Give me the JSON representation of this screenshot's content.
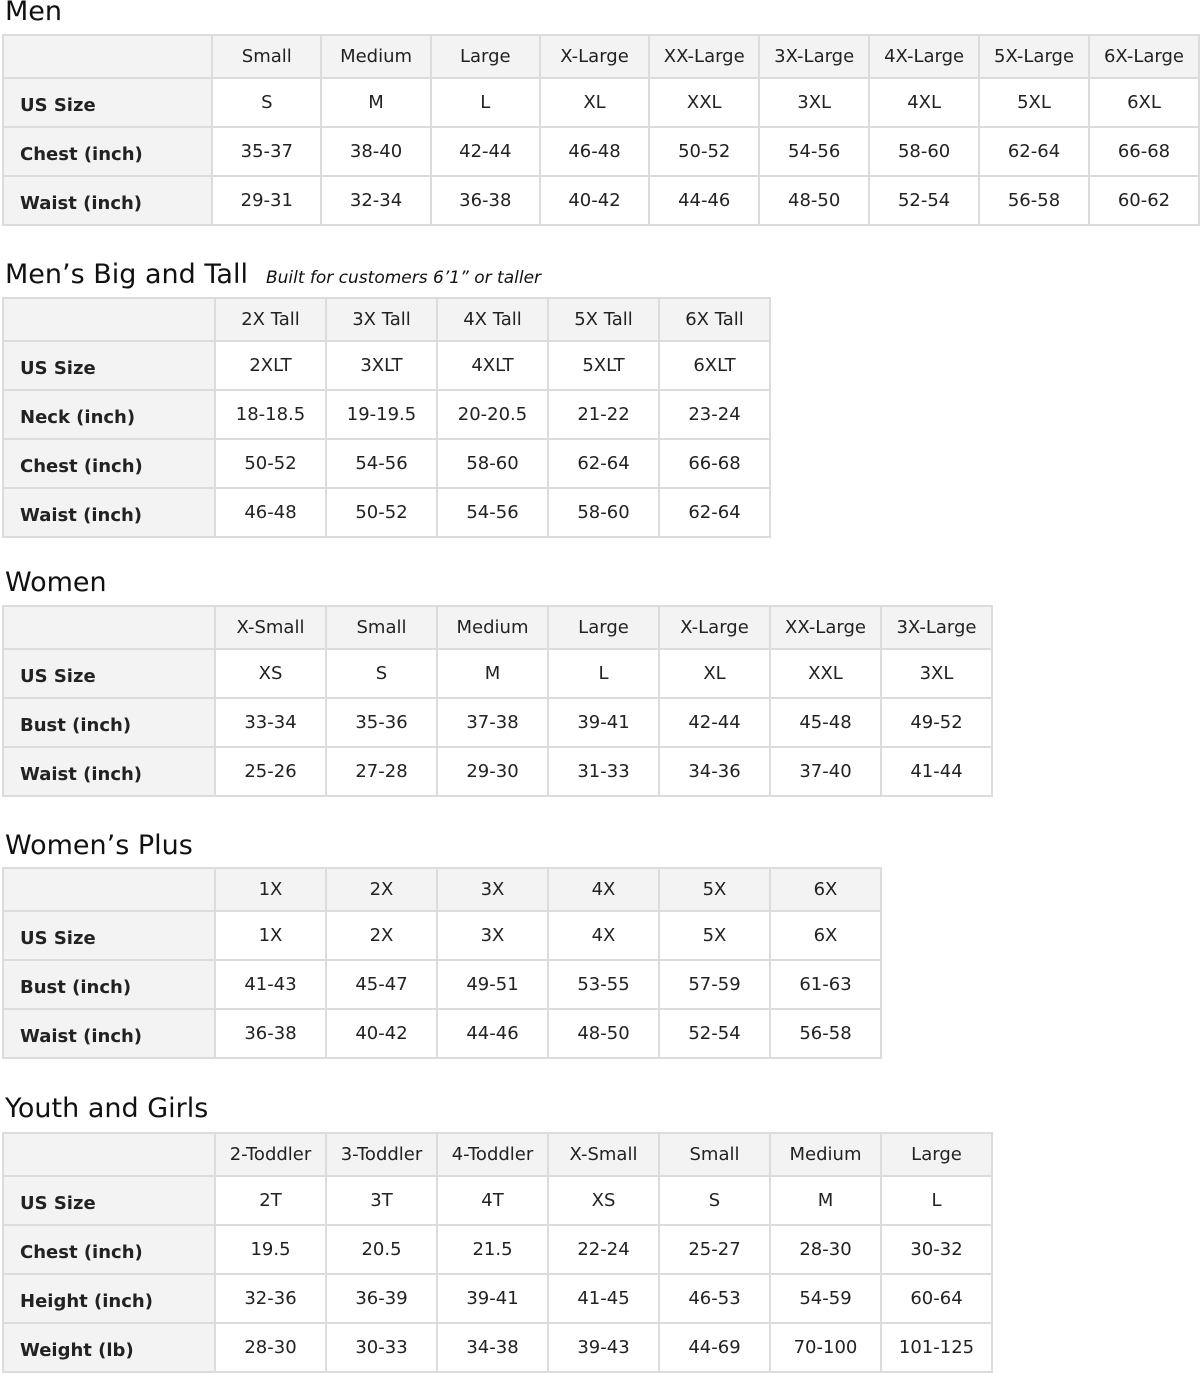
{
  "sections": [
    {
      "title": "Men",
      "note": "",
      "columns": [
        "Small",
        "Medium",
        "Large",
        "X-Large",
        "XX-Large",
        "3X-Large",
        "4X-Large",
        "5X-Large",
        "6X-Large"
      ],
      "rows": [
        {
          "label": "US Size",
          "values": [
            "S",
            "M",
            "L",
            "XL",
            "XXL",
            "3XL",
            "4XL",
            "5XL",
            "6XL"
          ]
        },
        {
          "label": "Chest (inch)",
          "values": [
            "35-37",
            "38-40",
            "42-44",
            "46-48",
            "50-52",
            "54-56",
            "58-60",
            "62-64",
            "66-68"
          ]
        },
        {
          "label": "Waist (inch)",
          "values": [
            "29-31",
            "32-34",
            "36-38",
            "40-42",
            "44-46",
            "48-50",
            "52-54",
            "56-58",
            "60-62"
          ]
        }
      ]
    },
    {
      "title": "Men’s Big and Tall",
      "note": "Built for customers 6’1” or taller",
      "columns": [
        "2X Tall",
        "3X Tall",
        "4X Tall",
        "5X Tall",
        "6X Tall"
      ],
      "rows": [
        {
          "label": "US Size",
          "values": [
            "2XLT",
            "3XLT",
            "4XLT",
            "5XLT",
            "6XLT"
          ]
        },
        {
          "label": "Neck (inch)",
          "values": [
            "18-18.5",
            "19-19.5",
            "20-20.5",
            "21-22",
            "23-24"
          ]
        },
        {
          "label": "Chest (inch)",
          "values": [
            "50-52",
            "54-56",
            "58-60",
            "62-64",
            "66-68"
          ]
        },
        {
          "label": "Waist (inch)",
          "values": [
            "46-48",
            "50-52",
            "54-56",
            "58-60",
            "62-64"
          ]
        }
      ]
    },
    {
      "title": "Women",
      "note": "",
      "columns": [
        "X-Small",
        "Small",
        "Medium",
        "Large",
        "X-Large",
        "XX-Large",
        "3X-Large"
      ],
      "rows": [
        {
          "label": "US Size",
          "values": [
            "XS",
            "S",
            "M",
            "L",
            "XL",
            "XXL",
            "3XL"
          ]
        },
        {
          "label": "Bust (inch)",
          "values": [
            "33-34",
            "35-36",
            "37-38",
            "39-41",
            "42-44",
            "45-48",
            "49-52"
          ]
        },
        {
          "label": "Waist (inch)",
          "values": [
            "25-26",
            "27-28",
            "29-30",
            "31-33",
            "34-36",
            "37-40",
            "41-44"
          ]
        }
      ]
    },
    {
      "title": "Women’s  Plus",
      "note": "",
      "columns": [
        "1X",
        "2X",
        "3X",
        "4X",
        "5X",
        "6X"
      ],
      "rows": [
        {
          "label": "US Size",
          "values": [
            "1X",
            "2X",
            "3X",
            "4X",
            "5X",
            "6X"
          ]
        },
        {
          "label": "Bust (inch)",
          "values": [
            "41-43",
            "45-47",
            "49-51",
            "53-55",
            "57-59",
            "61-63"
          ]
        },
        {
          "label": "Waist (inch)",
          "values": [
            "36-38",
            "40-42",
            "44-46",
            "48-50",
            "52-54",
            "56-58"
          ]
        }
      ]
    },
    {
      "title": "Youth and Girls",
      "note": "",
      "columns": [
        "2-Toddler",
        "3-Toddler",
        "4-Toddler",
        "X-Small",
        "Small",
        "Medium",
        "Large"
      ],
      "rows": [
        {
          "label": "US Size",
          "values": [
            "2T",
            "3T",
            "4T",
            "XS",
            "S",
            "M",
            "L"
          ]
        },
        {
          "label": "Chest (inch)",
          "values": [
            "19.5",
            "20.5",
            "21.5",
            "22-24",
            "25-27",
            "28-30",
            "30-32"
          ]
        },
        {
          "label": "Height (inch)",
          "values": [
            "32-36",
            "36-39",
            "39-41",
            "41-45",
            "46-53",
            "54-59",
            "60-64"
          ]
        },
        {
          "label": "Weight (lb)",
          "values": [
            "28-30",
            "30-33",
            "34-38",
            "39-43",
            "44-69",
            "70-100",
            "101-125"
          ]
        }
      ]
    }
  ]
}
